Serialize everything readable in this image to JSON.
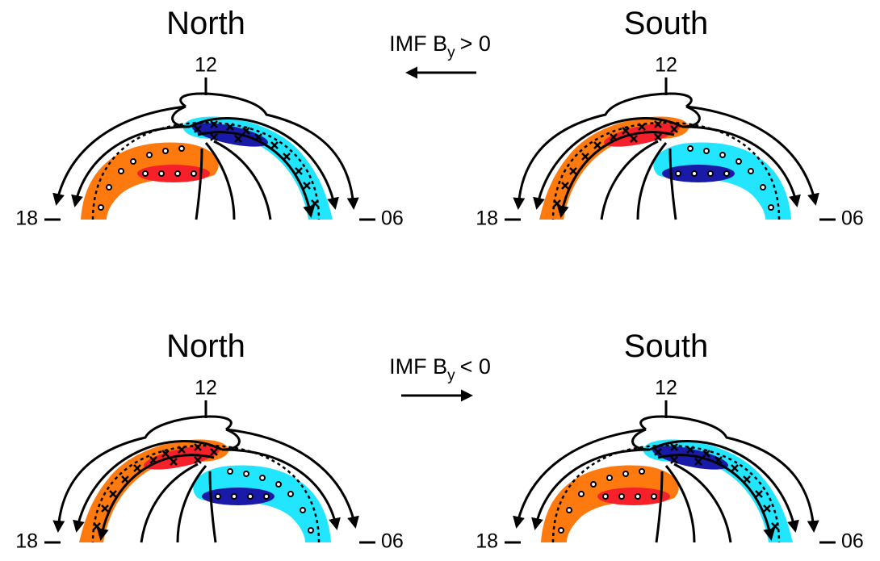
{
  "panels": [
    {
      "title": "North",
      "noon": "12",
      "dusk": "18",
      "dawn": "06"
    },
    {
      "title": "South",
      "noon": "12",
      "dusk": "18",
      "dawn": "06"
    },
    {
      "title": "North",
      "noon": "12",
      "dusk": "18",
      "dawn": "06"
    },
    {
      "title": "South",
      "noon": "12",
      "dusk": "18",
      "dawn": "06"
    }
  ],
  "imf": [
    {
      "prefix": "IMF B",
      "sub": "y",
      "relation": "> 0"
    },
    {
      "prefix": "IMF B",
      "sub": "y",
      "relation": "< 0"
    }
  ]
}
